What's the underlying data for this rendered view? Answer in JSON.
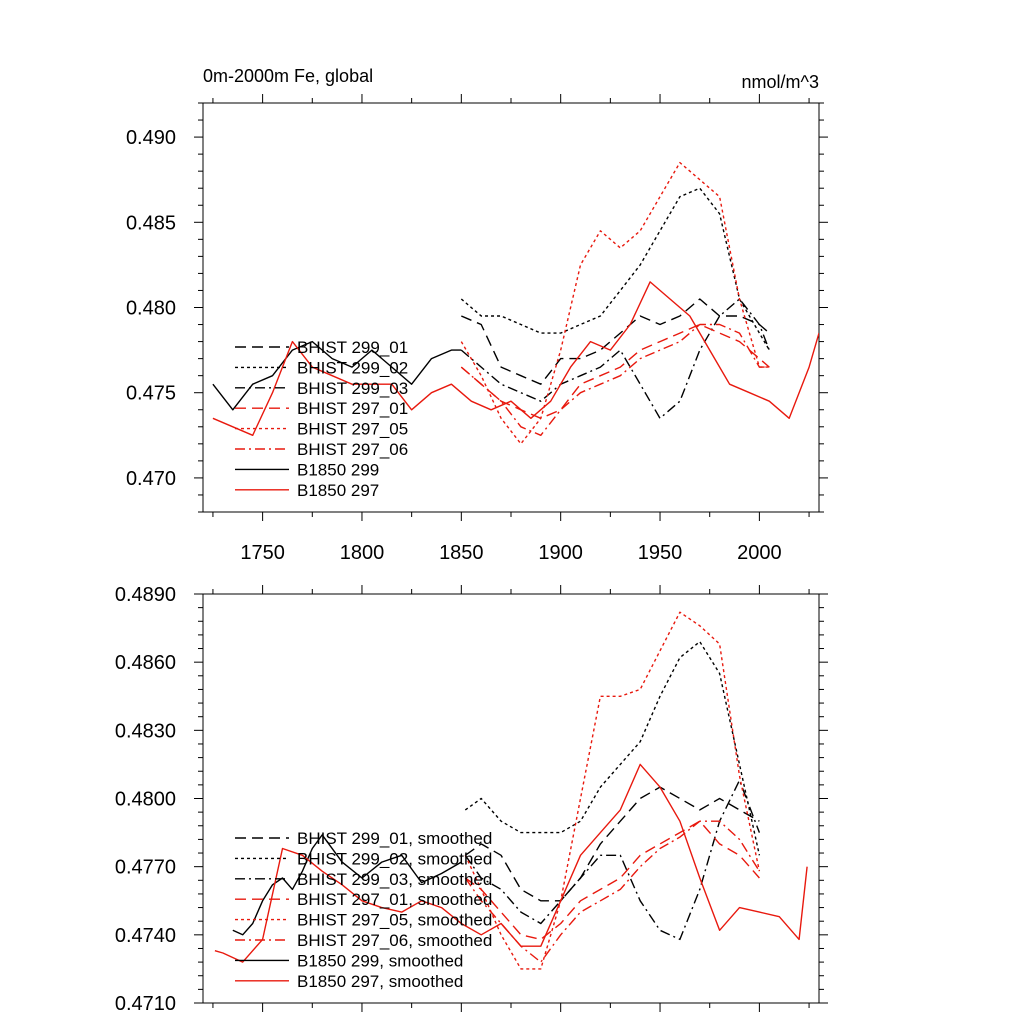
{
  "chart_data": [
    {
      "type": "line",
      "title": "0m-2000m Fe, global",
      "units": "nmol/m^3",
      "xlim": [
        1720,
        2030
      ],
      "ylim": [
        0.468,
        0.492
      ],
      "x_ticks": [
        1750,
        1800,
        1850,
        1900,
        1950,
        2000
      ],
      "x_tick_labels": [
        "1750",
        "1800",
        "1850",
        "1900",
        "1950",
        "2000"
      ],
      "y_ticks": [
        0.47,
        0.475,
        0.48,
        0.485,
        0.49
      ],
      "y_tick_labels": [
        "0.470",
        "0.475",
        "0.480",
        "0.485",
        "0.490"
      ],
      "legend_position": "lower-left",
      "series": [
        {
          "name": "BHIST 299_01",
          "color": "#000000",
          "dash": "long-dash",
          "x": [
            1850,
            1860,
            1870,
            1880,
            1890,
            1900,
            1910,
            1920,
            1930,
            1940,
            1950,
            1960,
            1970,
            1980,
            1990,
            2000,
            2005
          ],
          "y": [
            0.4795,
            0.479,
            0.4765,
            0.476,
            0.4755,
            0.477,
            0.477,
            0.4775,
            0.4785,
            0.4795,
            0.479,
            0.4795,
            0.4805,
            0.4795,
            0.4795,
            0.479,
            0.4785
          ]
        },
        {
          "name": "BHIST 299_02",
          "color": "#000000",
          "dash": "dot",
          "x": [
            1850,
            1860,
            1870,
            1880,
            1890,
            1900,
            1910,
            1920,
            1930,
            1940,
            1950,
            1960,
            1970,
            1980,
            1990,
            2000,
            2005
          ],
          "y": [
            0.4805,
            0.4795,
            0.4795,
            0.479,
            0.4785,
            0.4785,
            0.479,
            0.4795,
            0.481,
            0.4825,
            0.4845,
            0.4865,
            0.487,
            0.4855,
            0.4805,
            0.4785,
            0.4775
          ]
        },
        {
          "name": "BHIST 299_03",
          "color": "#000000",
          "dash": "dash-dot",
          "x": [
            1850,
            1860,
            1870,
            1880,
            1890,
            1900,
            1910,
            1920,
            1930,
            1940,
            1950,
            1960,
            1970,
            1980,
            1990,
            2000,
            2005
          ],
          "y": [
            0.4775,
            0.4765,
            0.4755,
            0.475,
            0.4745,
            0.4755,
            0.476,
            0.4765,
            0.4775,
            0.4755,
            0.4735,
            0.4745,
            0.4775,
            0.4795,
            0.4805,
            0.479,
            0.4775
          ]
        },
        {
          "name": "BHIST 297_01",
          "color": "#e8190e",
          "dash": "long-dash",
          "x": [
            1850,
            1860,
            1870,
            1880,
            1890,
            1900,
            1910,
            1920,
            1930,
            1940,
            1950,
            1960,
            1970,
            1980,
            1990,
            2000,
            2005
          ],
          "y": [
            0.4765,
            0.4755,
            0.4745,
            0.474,
            0.4735,
            0.474,
            0.4755,
            0.476,
            0.4765,
            0.4775,
            0.478,
            0.4785,
            0.479,
            0.4785,
            0.478,
            0.477,
            0.4765
          ]
        },
        {
          "name": "BHIST 297_05",
          "color": "#e8190e",
          "dash": "dot",
          "x": [
            1850,
            1860,
            1870,
            1880,
            1890,
            1900,
            1910,
            1920,
            1930,
            1940,
            1950,
            1960,
            1970,
            1980,
            1990,
            2000,
            2005
          ],
          "y": [
            0.478,
            0.476,
            0.4735,
            0.472,
            0.4735,
            0.4775,
            0.4825,
            0.4845,
            0.4835,
            0.4845,
            0.4865,
            0.4885,
            0.4875,
            0.4865,
            0.4805,
            0.4765,
            0.4765
          ]
        },
        {
          "name": "BHIST 297_06",
          "color": "#e8190e",
          "dash": "dash-dot",
          "x": [
            1850,
            1860,
            1870,
            1880,
            1890,
            1900,
            1910,
            1920,
            1930,
            1940,
            1950,
            1960,
            1970,
            1980,
            1990,
            2000,
            2005
          ],
          "y": [
            0.4765,
            0.4755,
            0.4745,
            0.473,
            0.4725,
            0.474,
            0.475,
            0.4755,
            0.476,
            0.477,
            0.4775,
            0.478,
            0.479,
            0.479,
            0.4785,
            0.4765,
            0.4765
          ]
        },
        {
          "name": "B1850 299",
          "color": "#000000",
          "dash": "solid",
          "x": [
            1725,
            1735,
            1745,
            1755,
            1765,
            1775,
            1785,
            1795,
            1805,
            1815,
            1825,
            1835,
            1845,
            1850
          ],
          "y": [
            0.4755,
            0.474,
            0.4755,
            0.476,
            0.4775,
            0.478,
            0.477,
            0.4765,
            0.4775,
            0.4765,
            0.4755,
            0.477,
            0.4775,
            0.4775
          ]
        },
        {
          "name": "B1850 297",
          "color": "#e8190e",
          "dash": "solid",
          "x": [
            1725,
            1735,
            1745,
            1755,
            1765,
            1775,
            1785,
            1795,
            1805,
            1815,
            1825,
            1835,
            1845,
            1855,
            1865,
            1875,
            1885,
            1895,
            1905,
            1915,
            1925,
            1935,
            1945,
            1955,
            1965,
            1975,
            1985,
            1995,
            2005,
            2015,
            2025,
            2030
          ],
          "y": [
            0.4735,
            0.473,
            0.4725,
            0.475,
            0.478,
            0.4765,
            0.476,
            0.4755,
            0.4755,
            0.4755,
            0.474,
            0.475,
            0.4755,
            0.4745,
            0.474,
            0.4745,
            0.4735,
            0.4745,
            0.4765,
            0.478,
            0.4775,
            0.479,
            0.4815,
            0.4805,
            0.4795,
            0.4775,
            0.4755,
            0.475,
            0.4745,
            0.4735,
            0.4765,
            0.4785
          ]
        }
      ]
    },
    {
      "type": "line",
      "title": "",
      "units": "",
      "xlim": [
        1720,
        2030
      ],
      "ylim": [
        0.471,
        0.489
      ],
      "x_ticks": [
        1750,
        1800,
        1850,
        1900,
        1950,
        2000
      ],
      "x_tick_labels": [],
      "y_ticks": [
        0.471,
        0.474,
        0.477,
        0.48,
        0.483,
        0.486,
        0.489
      ],
      "y_tick_labels": [
        "0.4710",
        "0.4740",
        "0.4770",
        "0.4800",
        "0.4830",
        "0.4860",
        "0.4890"
      ],
      "legend_position": "lower-left",
      "series": [
        {
          "name": "BHIST 299_01, smoothed",
          "color": "#000000",
          "dash": "long-dash",
          "x": [
            1852,
            1860,
            1870,
            1880,
            1890,
            1900,
            1910,
            1920,
            1930,
            1940,
            1950,
            1960,
            1970,
            1980,
            1990,
            2000
          ],
          "y": [
            0.4775,
            0.478,
            0.4775,
            0.476,
            0.4755,
            0.4755,
            0.4765,
            0.478,
            0.479,
            0.48,
            0.4805,
            0.48,
            0.4795,
            0.48,
            0.4795,
            0.479
          ]
        },
        {
          "name": "BHIST 299_02, smoothed",
          "color": "#000000",
          "dash": "dot",
          "x": [
            1852,
            1860,
            1870,
            1880,
            1890,
            1900,
            1910,
            1920,
            1930,
            1940,
            1950,
            1960,
            1970,
            1980,
            1990,
            2000
          ],
          "y": [
            0.4795,
            0.48,
            0.479,
            0.4785,
            0.4785,
            0.4785,
            0.479,
            0.4805,
            0.4815,
            0.4825,
            0.4845,
            0.4862,
            0.4869,
            0.4855,
            0.4815,
            0.4775
          ]
        },
        {
          "name": "BHIST 299_03, smoothed",
          "color": "#000000",
          "dash": "dash-dot",
          "x": [
            1852,
            1860,
            1870,
            1880,
            1890,
            1900,
            1910,
            1920,
            1930,
            1940,
            1950,
            1960,
            1970,
            1980,
            1990,
            2000
          ],
          "y": [
            0.4775,
            0.4765,
            0.476,
            0.475,
            0.4745,
            0.4755,
            0.4765,
            0.4775,
            0.4775,
            0.4755,
            0.4742,
            0.4738,
            0.476,
            0.479,
            0.4808,
            0.4785
          ]
        },
        {
          "name": "BHIST 297_01, smoothed",
          "color": "#e8190e",
          "dash": "long-dash",
          "x": [
            1852,
            1860,
            1870,
            1880,
            1890,
            1900,
            1910,
            1920,
            1930,
            1940,
            1950,
            1960,
            1970,
            1980,
            1990,
            2000
          ],
          "y": [
            0.4765,
            0.476,
            0.475,
            0.474,
            0.4738,
            0.4745,
            0.4755,
            0.476,
            0.4765,
            0.4775,
            0.478,
            0.4785,
            0.479,
            0.478,
            0.4775,
            0.4765
          ]
        },
        {
          "name": "BHIST 297_05, smoothed",
          "color": "#e8190e",
          "dash": "dot",
          "x": [
            1852,
            1860,
            1870,
            1880,
            1890,
            1900,
            1910,
            1920,
            1930,
            1940,
            1950,
            1960,
            1970,
            1980,
            1990,
            2000
          ],
          "y": [
            0.4775,
            0.476,
            0.474,
            0.4725,
            0.4725,
            0.4755,
            0.48,
            0.4845,
            0.4845,
            0.4848,
            0.4865,
            0.4882,
            0.4876,
            0.4868,
            0.481,
            0.4768
          ]
        },
        {
          "name": "BHIST 297_06, smoothed",
          "color": "#e8190e",
          "dash": "dash-dot",
          "x": [
            1852,
            1860,
            1870,
            1880,
            1890,
            1900,
            1910,
            1920,
            1930,
            1940,
            1950,
            1960,
            1970,
            1980,
            1990,
            2000
          ],
          "y": [
            0.4765,
            0.4755,
            0.4745,
            0.4735,
            0.4728,
            0.474,
            0.475,
            0.4755,
            0.476,
            0.477,
            0.4778,
            0.4783,
            0.479,
            0.479,
            0.4782,
            0.4768
          ]
        },
        {
          "name": "B1850 299, smoothed",
          "color": "#000000",
          "dash": "solid",
          "x": [
            1735,
            1740,
            1745,
            1750,
            1755,
            1760,
            1765,
            1770,
            1775,
            1780,
            1790,
            1800,
            1810,
            1820,
            1830,
            1840,
            1850
          ],
          "y": [
            0.4742,
            0.474,
            0.4745,
            0.4755,
            0.4762,
            0.4765,
            0.476,
            0.4768,
            0.4778,
            0.4784,
            0.4772,
            0.4765,
            0.4772,
            0.4775,
            0.4763,
            0.4767,
            0.4772
          ]
        },
        {
          "name": "B1850 297, smoothed",
          "color": "#e8190e",
          "dash": "solid",
          "x": [
            1726,
            1730,
            1740,
            1750,
            1760,
            1770,
            1780,
            1790,
            1800,
            1810,
            1820,
            1830,
            1840,
            1850,
            1860,
            1870,
            1880,
            1890,
            1900,
            1910,
            1920,
            1930,
            1940,
            1950,
            1960,
            1970,
            1980,
            1990,
            2000,
            2010,
            2020,
            2024
          ],
          "y": [
            0.4733,
            0.4732,
            0.4728,
            0.4738,
            0.4778,
            0.4775,
            0.4768,
            0.4762,
            0.4755,
            0.4752,
            0.475,
            0.4755,
            0.4752,
            0.4745,
            0.474,
            0.4745,
            0.4735,
            0.4735,
            0.4755,
            0.4775,
            0.4785,
            0.4795,
            0.4815,
            0.4805,
            0.479,
            0.4765,
            0.4742,
            0.4752,
            0.475,
            0.4748,
            0.4738,
            0.477
          ]
        }
      ]
    }
  ]
}
